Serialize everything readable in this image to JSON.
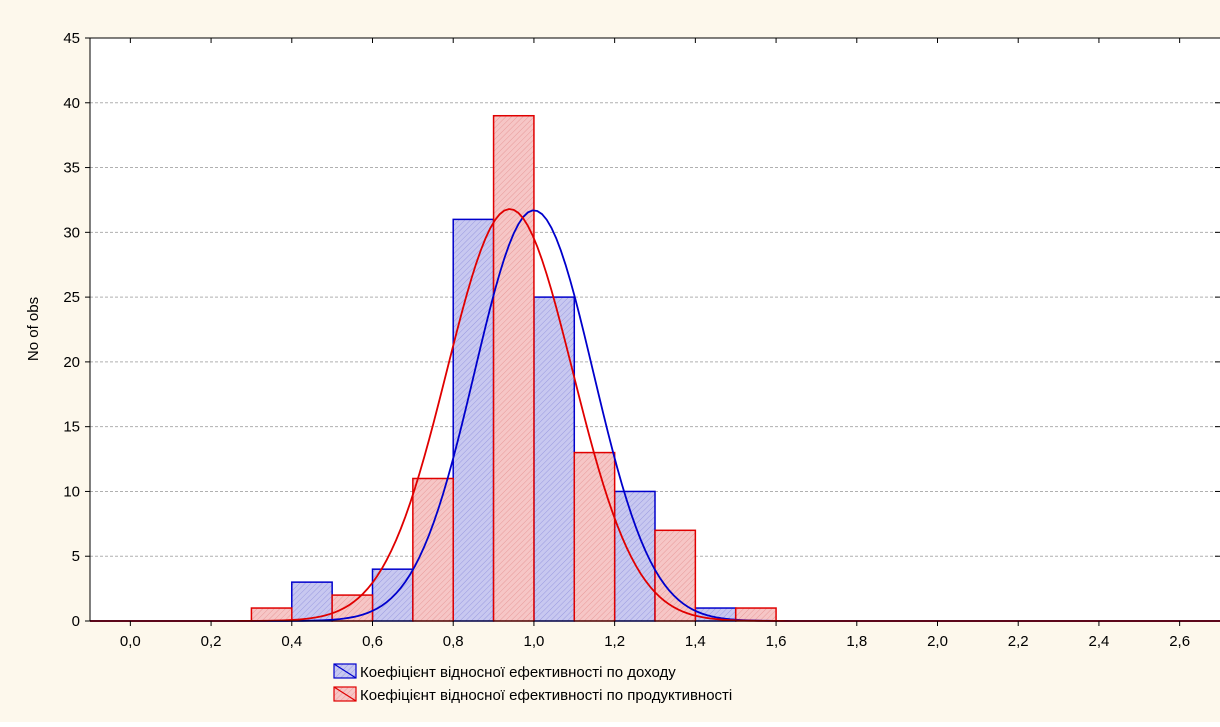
{
  "chart_data": {
    "type": "bar",
    "title": "",
    "xlabel": "",
    "ylabel": "No of obs",
    "xlim": [
      -0.1,
      2.7
    ],
    "ylim": [
      0,
      45
    ],
    "xticks": [
      "0,0",
      "0,2",
      "0,4",
      "0,6",
      "0,8",
      "1,0",
      "1,2",
      "1,4",
      "1,6",
      "1,8",
      "2,0",
      "2,2",
      "2,4",
      "2,6"
    ],
    "xtick_values": [
      0,
      0.2,
      0.4,
      0.6,
      0.8,
      1.0,
      1.2,
      1.4,
      1.6,
      1.8,
      2.0,
      2.2,
      2.4,
      2.6
    ],
    "yticks": [
      "0",
      "5",
      "10",
      "15",
      "20",
      "25",
      "30",
      "35",
      "40",
      "45"
    ],
    "ytick_values": [
      0,
      5,
      10,
      15,
      20,
      25,
      30,
      35,
      40,
      45
    ],
    "grid": true,
    "legend_position": "bottom-center",
    "bin_width": 0.1,
    "series": [
      {
        "name": "Коефіцієнт відносної ефективності по доходу",
        "color": "#0000cc",
        "fill": "#c8c8f0",
        "bins": [
          0.3,
          0.4,
          0.5,
          0.6,
          0.7,
          0.8,
          0.9,
          1.0,
          1.1,
          1.2,
          1.3,
          1.4,
          1.5
        ],
        "values": [
          0,
          3,
          0,
          4,
          0,
          31,
          0,
          25,
          0,
          10,
          0,
          1,
          0
        ],
        "curve": {
          "mean": 1.0,
          "sd": 0.147,
          "peak": 31.7
        }
      },
      {
        "name": "Коефіцієнт відносної ефективності по продуктивності",
        "color": "#e00000",
        "fill": "#f6c6c6",
        "bins": [
          0.3,
          0.4,
          0.5,
          0.6,
          0.7,
          0.8,
          0.9,
          1.0,
          1.1,
          1.2,
          1.3,
          1.4,
          1.5
        ],
        "values": [
          1,
          0,
          2,
          0,
          11,
          0,
          39,
          0,
          13,
          0,
          7,
          0,
          1
        ],
        "curve": {
          "mean": 0.94,
          "sd": 0.156,
          "peak": 31.8
        }
      }
    ]
  }
}
